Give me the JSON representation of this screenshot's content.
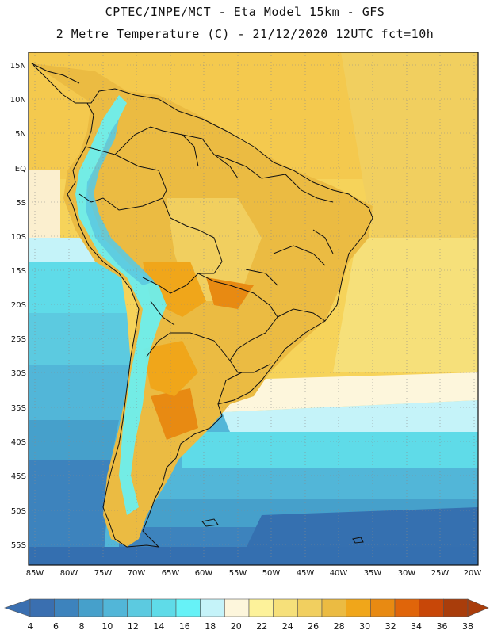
{
  "header": {
    "line1": "CPTEC/INPE/MCT -  Eta Model 15km - GFS",
    "line2": "2 Metre Temperature (C) - 21/12/2020 12UTC fct=10h"
  },
  "lat_labels": [
    "15N",
    "10N",
    "5N",
    "EQ",
    "5S",
    "10S",
    "15S",
    "20S",
    "25S",
    "30S",
    "35S",
    "40S",
    "45S",
    "50S",
    "55S"
  ],
  "lon_labels": [
    "85W",
    "80W",
    "75W",
    "70W",
    "65W",
    "60W",
    "55W",
    "50W",
    "45W",
    "40W",
    "35W",
    "30W",
    "25W",
    "20W"
  ],
  "colorbar": {
    "ticks": [
      "4",
      "6",
      "8",
      "10",
      "12",
      "14",
      "16",
      "18",
      "20",
      "22",
      "24",
      "26",
      "28",
      "30",
      "32",
      "34",
      "36",
      "38"
    ],
    "colors": [
      "#3a6fb0",
      "#3d83bd",
      "#46a0cb",
      "#52b6d8",
      "#5ccae0",
      "#5fdbe8",
      "#66f2f7",
      "#c5f3f9",
      "#fdf6dc",
      "#fdf29a",
      "#f6e07a",
      "#f1cf5f",
      "#ebbb42",
      "#f0a61a",
      "#e88a12",
      "#e0650a",
      "#c84708",
      "#a93d0b"
    ]
  },
  "legend_colors": {
    "ocean_deep": "#3570b0",
    "land_warm": "#ebbb42",
    "border": "#111111"
  }
}
